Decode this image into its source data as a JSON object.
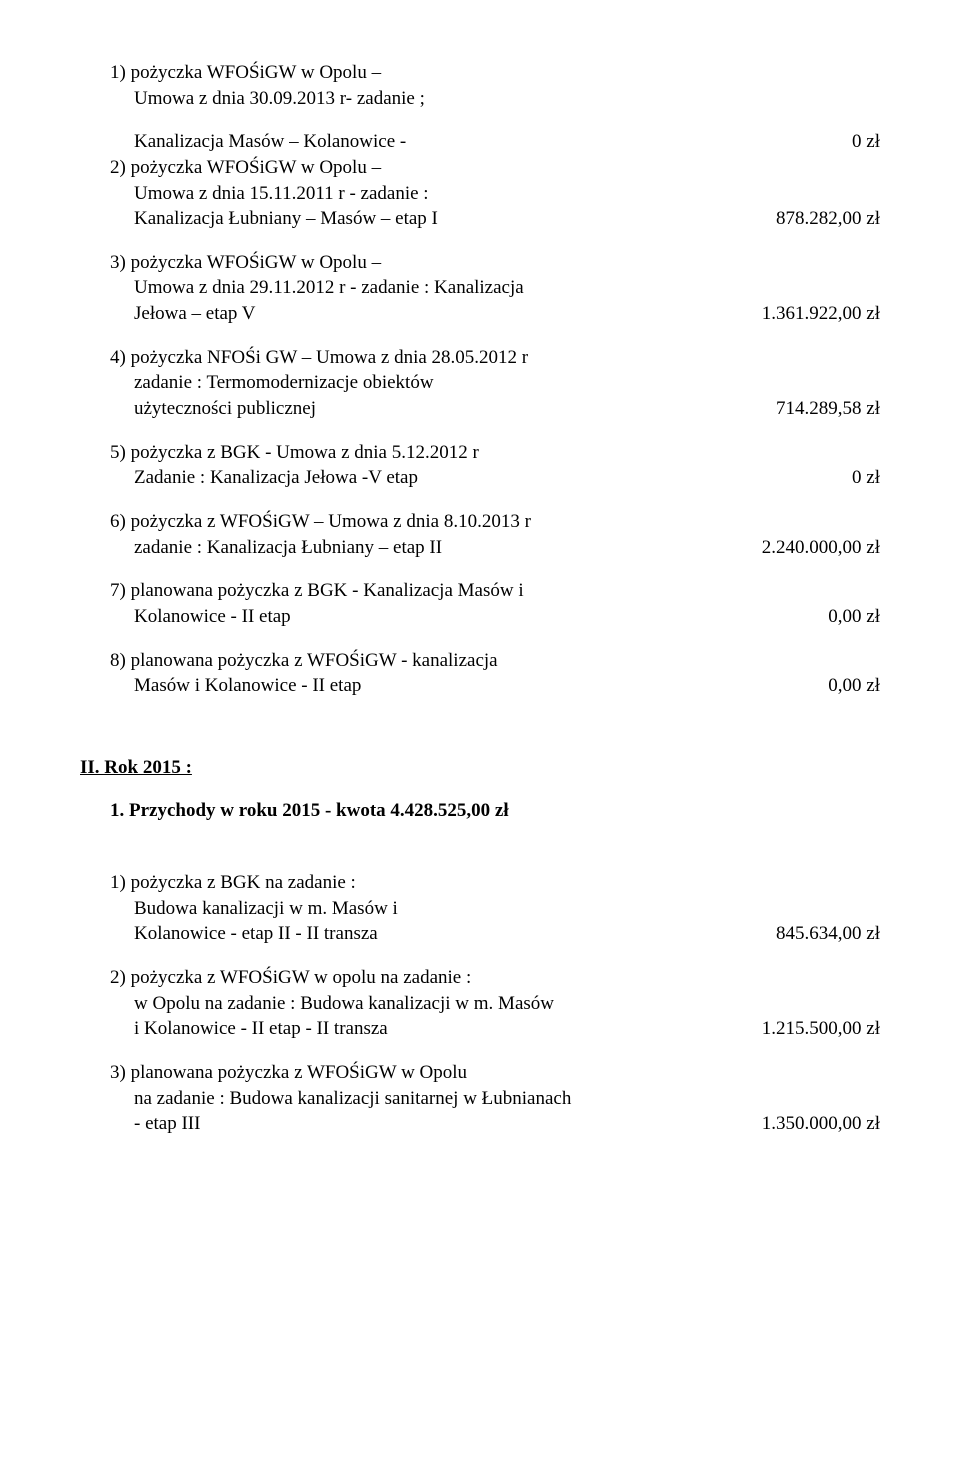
{
  "block1": {
    "item1": {
      "l1": "1) pożyczka  WFOŚiGW w Opolu –",
      "l2": "Umowa z dnia 30.09.2013 r- zadanie ;",
      "l3": "Kanalizacja  Masów – Kolanowice -",
      "amount": "0 zł"
    },
    "item2": {
      "l1": "2)  pożyczka WFOŚiGW w Opolu –",
      "l2": "Umowa z dnia 15.11.2011 r - zadanie :",
      "l3": "Kanalizacja  Łubniany – Masów – etap I",
      "amount": "878.282,00 zł"
    },
    "item3": {
      "l1": "3)  pożyczka WFOŚiGW w Opolu –",
      "l2": "Umowa z dnia 29.11.2012 r - zadanie : Kanalizacja",
      "l3": "Jełowa – etap V",
      "amount": "1.361.922,00 zł"
    },
    "item4": {
      "l1": "4)  pożyczka NFOŚi GW – Umowa z dnia 28.05.2012 r",
      "l2": "zadanie : Termomodernizacje obiektów",
      "l3": "użyteczności publicznej",
      "amount": "714.289,58 zł"
    },
    "item5": {
      "l1": "5)  pożyczka  z BGK  - Umowa z dnia 5.12.2012 r",
      "l2": "Zadanie : Kanalizacja Jełowa -V etap",
      "amount": "0  zł"
    },
    "item6": {
      "l1": "6)  pożyczka  z WFOŚiGW – Umowa z dnia 8.10.2013 r",
      "l2": "zadanie : Kanalizacja Łubniany – etap II",
      "amount": "2.240.000,00 zł"
    },
    "item7": {
      "l1": "7)  planowana pożyczka z BGK - Kanalizacja Masów i",
      "l2": "Kolanowice - II etap",
      "amount": "0,00 zł"
    },
    "item8": {
      "l1": "8)  planowana pożyczka z WFOŚiGW - kanalizacja",
      "l2": "Masów i Kolanowice - II etap",
      "amount": "0,00 zł"
    }
  },
  "section2": {
    "title": "II. Rok 2015 :",
    "line1_prefix": "1.   Przychody  w roku 2015  -  kwota  4.428.525,00 zł"
  },
  "block2": {
    "item1": {
      "l1": "1)  pożyczka z BGK na zadanie :",
      "l2": "Budowa kanalizacji w m. Masów i",
      "l3": "Kolanowice - etap II - II transza",
      "amount": "845.634,00 zł"
    },
    "item2": {
      "l1": "2)  pożyczka z WFOŚiGW w opolu na zadanie :",
      "l2": "w Opolu  na zadanie : Budowa kanalizacji w m. Masów",
      "l3": "i Kolanowice - II etap - II transza",
      "amount": "1.215.500,00 zł"
    },
    "item3": {
      "l1": "3) planowana pożyczka z WFOŚiGW w Opolu",
      "l2": "na zadanie : Budowa kanalizacji sanitarnej w Łubnianach",
      "l3": "- etap III",
      "amount": "1.350.000,00 zł"
    }
  }
}
